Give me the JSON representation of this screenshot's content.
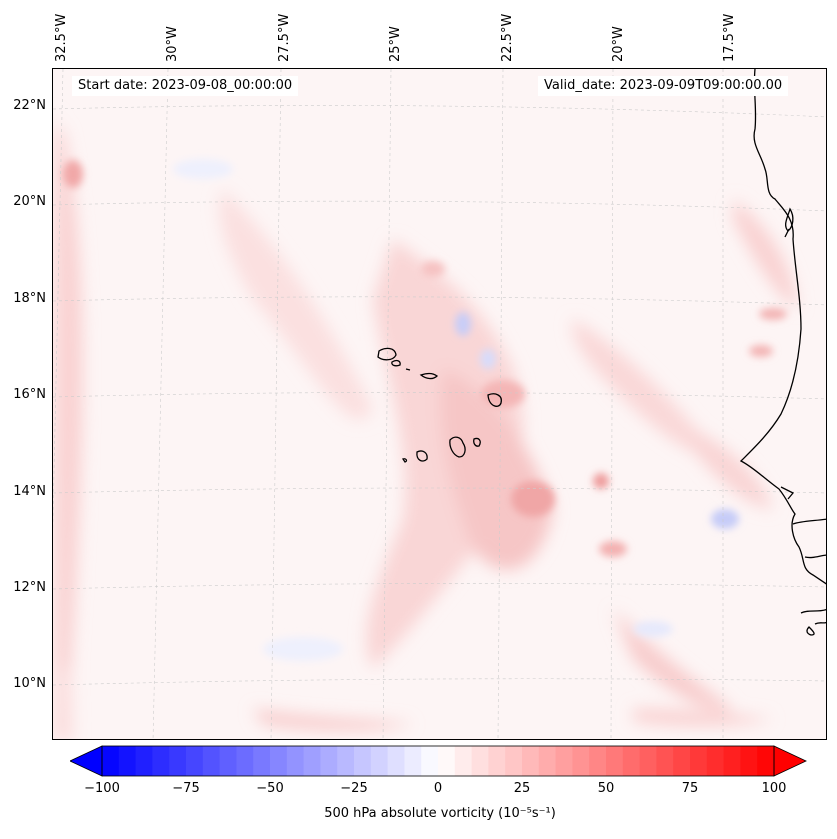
{
  "map": {
    "start_date": "Start date: 2023-09-08_00:00:00",
    "valid_date": "Valid_date: 2023-09-09T09:00:00.00",
    "lon_labels": [
      "32.5°W",
      "30°W",
      "27.5°W",
      "25°W",
      "22.5°W",
      "20°W",
      "17.5°W"
    ],
    "lat_labels": [
      "22°N",
      "20°N",
      "18°N",
      "16°N",
      "14°N",
      "12°N",
      "10°N"
    ],
    "variable": "500 hPa absolute vorticity",
    "units": "(10⁻⁵s⁻¹)",
    "colormap": "bwr",
    "colorbar_ticks": [
      "−100",
      "−75",
      "−50",
      "−25",
      "0",
      "25",
      "50",
      "75",
      "100"
    ],
    "colorbar_range": [
      -100,
      100
    ],
    "colors": {
      "negative": "#0000ff",
      "neutral": "#ffffff",
      "positive": "#ff0000",
      "coastline": "#000000",
      "gridline": "#cccccc"
    }
  }
}
